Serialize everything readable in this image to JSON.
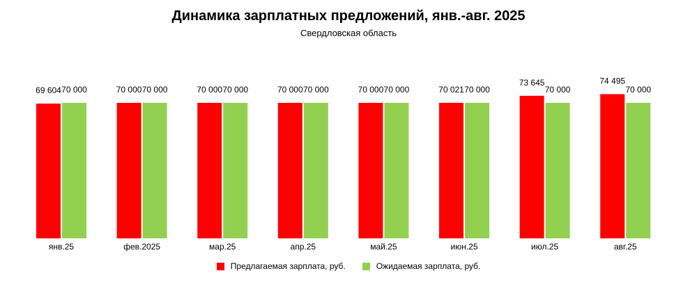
{
  "chart_data": {
    "type": "bar",
    "title": "Динамика зарплатных предложений, янв.-авг. 2025",
    "subtitle": "Свердловская область",
    "categories": [
      "янв.25",
      "фев.2025",
      "мар.25",
      "апр.25",
      "май.25",
      "июн.25",
      "июл.25",
      "авг.25"
    ],
    "series": [
      {
        "name": "Предлагаемая зарплата, руб.",
        "color": "#ff0000",
        "values": [
          69604,
          70000,
          70000,
          70000,
          70000,
          70021,
          73645,
          74495
        ],
        "labels": [
          "69 604",
          "70 000",
          "70 000",
          "70 000",
          "70 000",
          "70 021",
          "73 645",
          "74 495"
        ]
      },
      {
        "name": "Ожидаемая зарплата, руб.",
        "color": "#92d050",
        "values": [
          70000,
          70000,
          70000,
          70000,
          70000,
          70000,
          70000,
          70000
        ],
        "labels": [
          "70 000",
          "70 000",
          "70 000",
          "70 000",
          "70 000",
          "70 000",
          "70 000",
          "70 000"
        ]
      }
    ],
    "xlabel": "",
    "ylabel": "",
    "grid": false,
    "legend_position": "bottom"
  }
}
